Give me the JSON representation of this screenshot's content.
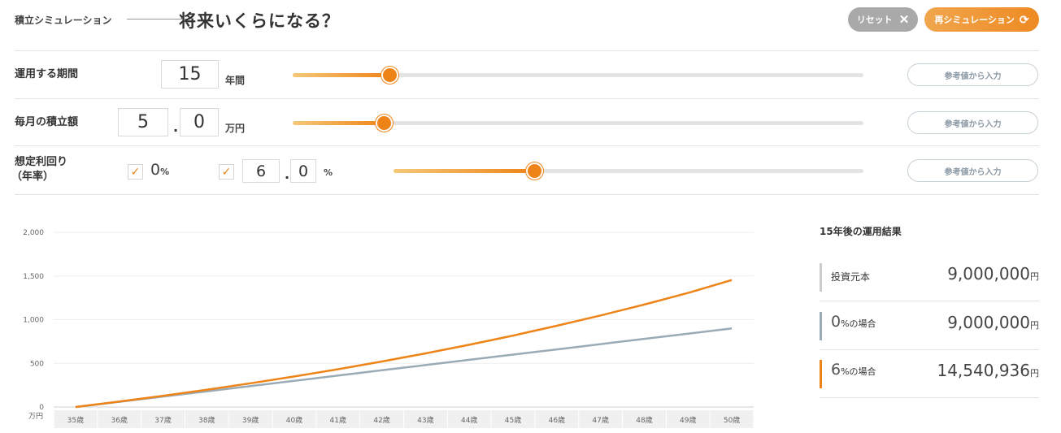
{
  "header": {
    "eyebrow": "積立シミュレーション",
    "title": "将来いくらになる？",
    "reset_label": "リセット",
    "resim_label": "再シミュレーション"
  },
  "period": {
    "label": "運用する期間",
    "value": "15",
    "unit": "年間",
    "slider_fraction": 0.17,
    "ref_label": "参考値から入力"
  },
  "monthly": {
    "label": "毎月の積立額",
    "int_value": "5",
    "dec_value": "0",
    "unit": "万円",
    "slider_fraction": 0.16,
    "ref_label": "参考値から入力"
  },
  "rate": {
    "label_line1": "想定利回り",
    "label_line2": "（年率）",
    "zero_value": "0",
    "percent": "%",
    "int_value": "6",
    "dec_value": "0",
    "slider_fraction": 0.3,
    "ref_label": "参考値から入力"
  },
  "chart_data": {
    "type": "line",
    "x": [
      "35歳",
      "36歳",
      "37歳",
      "38歳",
      "39歳",
      "40歳",
      "41歳",
      "42歳",
      "43歳",
      "44歳",
      "45歳",
      "46歳",
      "47歳",
      "48歳",
      "49歳",
      "50歳"
    ],
    "y_unit": "万円",
    "ylim": [
      0,
      2000
    ],
    "y_ticks": [
      "0",
      "500",
      "1,000",
      "1,500",
      "2,000"
    ],
    "grid": true,
    "series": [
      {
        "color": "#ee8418",
        "values": [
          0,
          62,
          128,
          198,
          272,
          350,
          433,
          521,
          614,
          713,
          818,
          930,
          1048,
          1173,
          1306,
          1454
        ]
      },
      {
        "color": "#9aabb6",
        "values": [
          0,
          60,
          120,
          180,
          240,
          300,
          360,
          420,
          480,
          540,
          600,
          660,
          720,
          780,
          840,
          900
        ]
      }
    ]
  },
  "results": {
    "title": "15年後の運用結果",
    "principal_label": "投資元本",
    "principal_value": "9,000,000",
    "zero_num": "0",
    "zero_suffix": "%の場合",
    "zero_value": "9,000,000",
    "six_num": "6",
    "six_suffix": "%の場合",
    "six_value": "14,540,936",
    "yen": "円",
    "colors": {
      "principal": "#cccccc",
      "zero": "#9aabb6",
      "six": "#ee8418"
    }
  }
}
